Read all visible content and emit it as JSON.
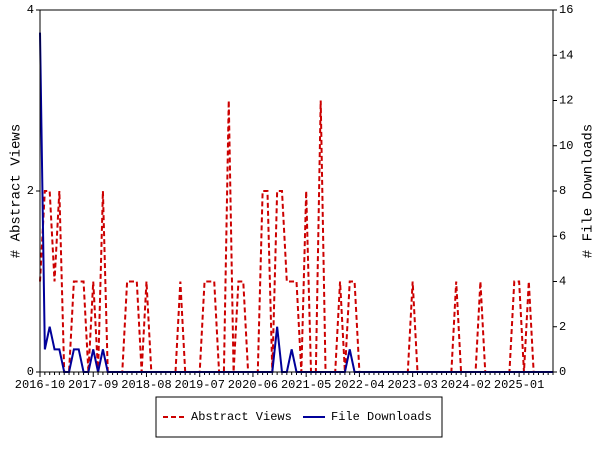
{
  "chart_data": {
    "type": "line",
    "categories": [
      "2016-10",
      null,
      null,
      null,
      null,
      null,
      null,
      null,
      null,
      null,
      null,
      "2017-09",
      null,
      null,
      null,
      null,
      null,
      null,
      null,
      null,
      null,
      null,
      "2018-08",
      null,
      null,
      null,
      null,
      null,
      null,
      null,
      null,
      null,
      null,
      "2019-07",
      null,
      null,
      null,
      null,
      null,
      null,
      null,
      null,
      null,
      null,
      "2020-06",
      null,
      null,
      null,
      null,
      null,
      null,
      null,
      null,
      null,
      null,
      "2021-05",
      null,
      null,
      null,
      null,
      null,
      null,
      null,
      null,
      null,
      null,
      "2022-04",
      null,
      null,
      null,
      null,
      null,
      null,
      null,
      null,
      null,
      null,
      "2023-03",
      null,
      null,
      null,
      null,
      null,
      null,
      null,
      null,
      null,
      null,
      "2024-02",
      null,
      null,
      null,
      null,
      null,
      null,
      null,
      null,
      null,
      null,
      "2025-01",
      null,
      null,
      null,
      null,
      null,
      null,
      null
    ],
    "ylabel": "# Abstract Views",
    "y2label": "# File Downloads",
    "ylim": [
      0,
      4
    ],
    "yticks": [
      0,
      2,
      4
    ],
    "y2lim": [
      0,
      16
    ],
    "y2ticks": [
      0,
      2,
      4,
      6,
      8,
      10,
      12,
      14,
      16
    ],
    "legend": "bottom",
    "series": [
      {
        "name": "Abstract Views",
        "color": "#cc0000",
        "dashed": true,
        "values": [
          1,
          2,
          2,
          1,
          2,
          0,
          0,
          1,
          1,
          1,
          0,
          1,
          0,
          2,
          0,
          0,
          0,
          0,
          1,
          1,
          1,
          0,
          1,
          0,
          0,
          0,
          0,
          0,
          0,
          1,
          0,
          0,
          0,
          0,
          1,
          1,
          1,
          0,
          0,
          3,
          0,
          1,
          1,
          0,
          0,
          0,
          2,
          2,
          0,
          2,
          2,
          1,
          1,
          1,
          0,
          2,
          0,
          0,
          3,
          0,
          0,
          0,
          1,
          0,
          1,
          1,
          0,
          0,
          0,
          0,
          0,
          0,
          0,
          0,
          0,
          0,
          0,
          1,
          0,
          0,
          0,
          0,
          0,
          0,
          0,
          0,
          1,
          0,
          0,
          0,
          0,
          1,
          0,
          0,
          0,
          0,
          0,
          0,
          1,
          1,
          0,
          1,
          0,
          0,
          0,
          0,
          0
        ]
      },
      {
        "name": "File Downloads",
        "color": "#000099",
        "axis": "y2",
        "values": [
          15,
          1,
          2,
          1,
          1,
          0,
          0,
          1,
          1,
          0,
          0,
          1,
          0,
          1,
          0,
          0,
          0,
          0,
          0,
          0,
          0,
          0,
          0,
          0,
          0,
          0,
          0,
          0,
          0,
          0,
          0,
          0,
          0,
          0,
          0,
          0,
          0,
          0,
          0,
          0,
          0,
          0,
          0,
          0,
          0,
          0,
          0,
          0,
          0,
          2,
          0,
          0,
          1,
          0,
          0,
          0,
          0,
          0,
          0,
          0,
          0,
          0,
          0,
          0,
          1,
          0,
          0,
          0,
          0,
          0,
          0,
          0,
          0,
          0,
          0,
          0,
          0,
          0,
          0,
          0,
          0,
          0,
          0,
          0,
          0,
          0,
          0,
          0,
          0,
          0,
          0,
          0,
          0,
          0,
          0,
          0,
          0,
          0,
          0,
          0,
          0,
          0,
          0,
          0,
          0,
          0,
          0
        ]
      }
    ]
  }
}
